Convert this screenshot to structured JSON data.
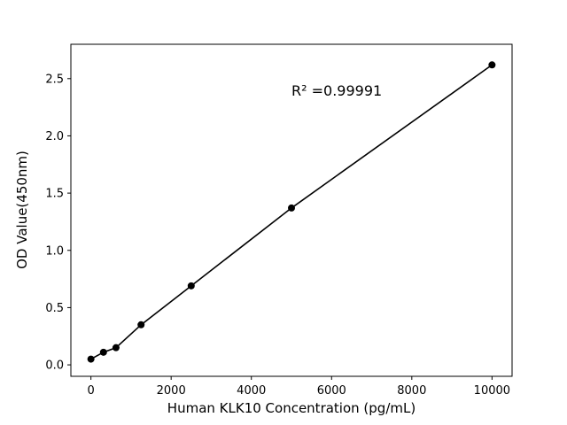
{
  "figure": {
    "background": "#ffffff",
    "text_color": "#000000"
  },
  "chart_data": {
    "type": "scatter",
    "title": "",
    "xlabel": "Human KLK10 Concentration (pg/mL)",
    "ylabel": "OD Value(450nm)",
    "x": [
      0,
      312.5,
      625,
      1250,
      2500,
      5000,
      10000
    ],
    "y": [
      0.05,
      0.11,
      0.15,
      0.35,
      0.69,
      1.37,
      2.62
    ],
    "line": true,
    "line_color": "#000000",
    "marker_color": "#000000",
    "xlim": [
      -500,
      10500
    ],
    "ylim": [
      -0.1,
      2.8
    ],
    "xticks": [
      0,
      2000,
      4000,
      6000,
      8000,
      10000
    ],
    "xtick_labels": [
      "0",
      "2000",
      "4000",
      "6000",
      "8000",
      "10000"
    ],
    "yticks": [
      0.0,
      0.5,
      1.0,
      1.5,
      2.0,
      2.5
    ],
    "ytick_labels": [
      "0.0",
      "0.5",
      "1.0",
      "1.5",
      "2.0",
      "2.5"
    ],
    "grid": false,
    "legend": "none",
    "annotation": {
      "text": "R² =0.99991",
      "x": 5000,
      "y": 2.36
    }
  }
}
